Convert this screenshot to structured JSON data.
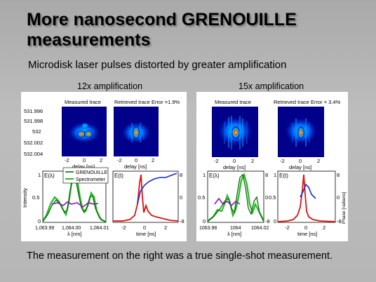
{
  "slide": {
    "title": "More nanosecond GRENOUILLE measurements",
    "subtitle": "Microdisk laser pulses distorted by greater amplification",
    "footer": "The measurement on the right was a true single-shot measurement."
  },
  "left": {
    "caption": "12x amplification",
    "measured_label": "Measured trace",
    "retrieved_label": "Retrieved trace Error =1.9%",
    "y_ticks": [
      "531.996",
      "531.998",
      "532",
      "532.002",
      "532.004"
    ],
    "delay_ticks": [
      "-2",
      "0",
      "2"
    ],
    "delay_label": "delay [ns]",
    "spec_label": "E(λ)",
    "temp_label": "E(t)",
    "intensity_label": "Intensity",
    "legend": [
      "GRENOUILLE",
      "Spectrometer"
    ],
    "spec_x_ticks": [
      "1,063.99",
      "1,064.00",
      "1,064.01"
    ],
    "spec_x_label": "λ [nm]",
    "time_ticks": [
      "-2",
      "0",
      "2"
    ],
    "time_label": "time [ns]",
    "y01": [
      "1",
      "0.5",
      "0"
    ],
    "phase_ticks": [
      "8",
      "0",
      "-8"
    ]
  },
  "right": {
    "caption": "15x amplification",
    "measured_label": "Measured trace",
    "retrieved_label": "Retrieved trace Error = 3.4%",
    "delay_ticks": [
      "-2",
      "0",
      "2"
    ],
    "delay_label": "delay [ns]",
    "spec_label": "E(λ)",
    "temp_label": "E(t)",
    "spec_x_ticks": [
      "1063.98",
      "1064",
      "1064.02"
    ],
    "spec_x_label": "λ [nm]",
    "time_ticks": [
      "-2",
      "0",
      "2"
    ],
    "time_label": "time [ns]",
    "phase_label": "Phase [radians]",
    "y01": [
      "1",
      "0.5",
      "0"
    ],
    "phase_ticks": [
      "8",
      "0",
      "-8"
    ]
  },
  "colors": {
    "green": "#22bb22",
    "darkgreen": "#0a6a0a",
    "purple": "#8a1ab0",
    "red": "#e01010",
    "blue": "#1a2acc"
  }
}
